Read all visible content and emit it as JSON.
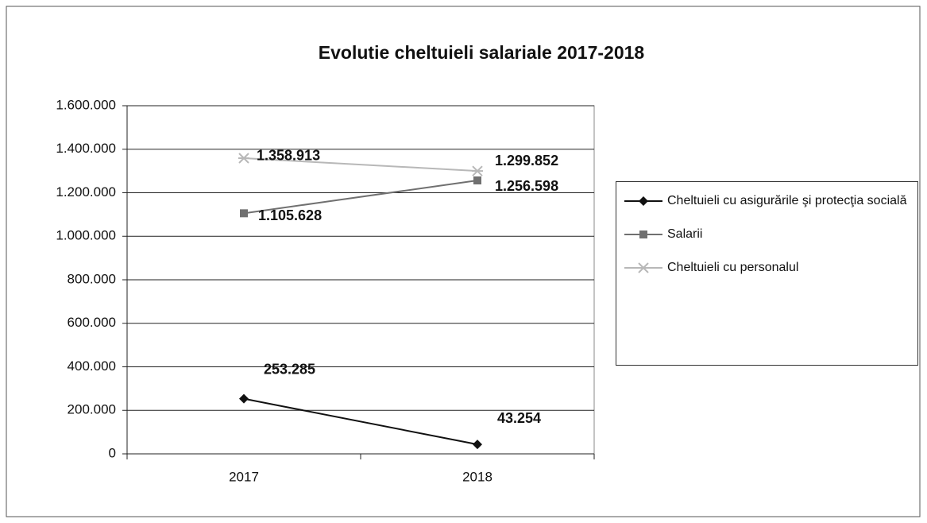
{
  "chart_data": {
    "type": "line",
    "title": "Evolutie cheltuieli salariale 2017-2018",
    "categories": [
      "2017",
      "2018"
    ],
    "series": [
      {
        "name": "Cheltuieli cu asigurările şi protecţia socială",
        "color": "#111111",
        "marker": "diamond",
        "values": [
          253285,
          43254
        ],
        "value_labels": [
          "253.285",
          "43.254"
        ]
      },
      {
        "name": "Salarii",
        "color": "#707070",
        "marker": "square",
        "values": [
          1105628,
          1256598
        ],
        "value_labels": [
          "1.105.628",
          "1.256.598"
        ]
      },
      {
        "name": "Cheltuieli cu personalul",
        "color": "#b8b8b8",
        "marker": "star",
        "values": [
          1358913,
          1299852
        ],
        "value_labels": [
          "1.358.913",
          "1.299.852"
        ]
      }
    ],
    "ylim": [
      0,
      1600000
    ],
    "yticks": [
      0,
      {
        "value": 200000,
        "label": "200.000"
      },
      {
        "value": 400000,
        "label": "400.000"
      },
      {
        "value": 600000,
        "label": "600.000"
      },
      {
        "value": 800000,
        "label": "800.000"
      },
      {
        "value": 1000000,
        "label": "1.000.000"
      },
      {
        "value": 1200000,
        "label": "1.200.000"
      },
      {
        "value": 1400000,
        "label": "1.400.000"
      },
      {
        "value": 1600000,
        "label": "1.600.000"
      }
    ],
    "grid": true,
    "legend": "right"
  }
}
